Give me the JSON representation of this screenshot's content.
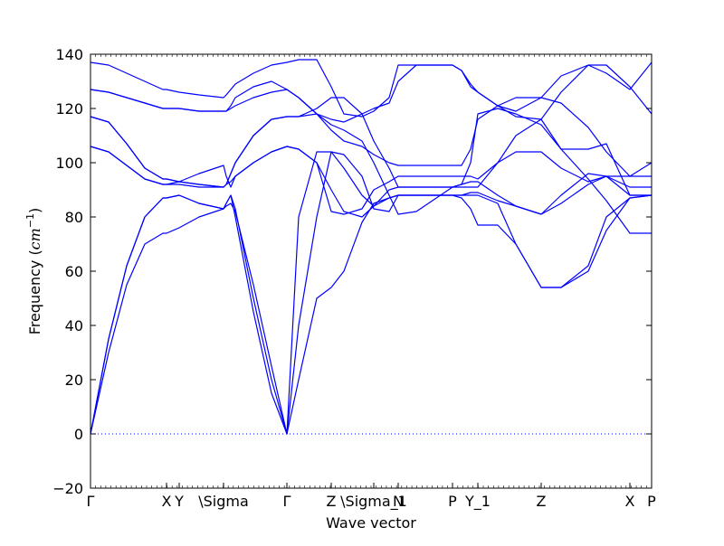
{
  "chart_data": {
    "type": "line",
    "xlabel": "Wave vector",
    "ylabel": "Frequency ($cm^{-1}$)",
    "ylabel_text": "Frequency (",
    "ylabel_unit": "cm",
    "ylabel_exp": "−1",
    "ylabel_close": ")",
    "ylim": [
      -20,
      140
    ],
    "yticks": [
      -20,
      0,
      20,
      40,
      60,
      80,
      100,
      120,
      140
    ],
    "xlim": [
      0,
      6.2
    ],
    "zero_line": true,
    "line_color": "#0000ff",
    "qpoints": [
      {
        "label": "Γ",
        "x": 0.0
      },
      {
        "label": "X",
        "x": 0.84
      },
      {
        "label": "Y",
        "x": 0.98
      },
      {
        "label": "\\Sigma",
        "x": 1.47
      },
      {
        "label": "Γ",
        "x": 2.17
      },
      {
        "label": "Z",
        "x": 2.66
      },
      {
        "label": "\\Sigma_1",
        "x": 3.13
      },
      {
        "label": "N",
        "x": 3.4
      },
      {
        "label": "P",
        "x": 4.0
      },
      {
        "label": "Y_1",
        "x": 4.28
      },
      {
        "label": "Z",
        "x": 4.98
      },
      {
        "label": "X",
        "x": 5.96
      },
      {
        "label": "P",
        "x": 6.2
      }
    ],
    "series": [
      {
        "x": [
          0,
          0.2,
          0.4,
          0.6,
          0.8,
          0.84,
          0.98,
          1.2,
          1.47,
          1.5,
          1.55,
          1.6,
          1.8,
          2.0,
          2.17,
          2.3,
          2.5,
          2.66,
          2.8,
          3.0,
          3.13,
          3.3,
          3.4,
          3.6,
          4.0,
          4.1,
          4.2,
          4.28,
          4.5,
          4.7,
          4.98,
          5.2,
          5.5,
          5.7,
          5.96,
          6.2
        ],
        "values": [
          0,
          35,
          62,
          80,
          87,
          87,
          88,
          85,
          83,
          85,
          88,
          83,
          50,
          20,
          0,
          20,
          50,
          54,
          60,
          78,
          85,
          87,
          88,
          88,
          88,
          87,
          83,
          77,
          77,
          70,
          54,
          54,
          60,
          75,
          87,
          88
        ]
      },
      {
        "x": [
          0,
          0.2,
          0.4,
          0.6,
          0.8,
          0.84,
          0.98,
          1.2,
          1.47,
          1.5,
          1.55,
          1.6,
          1.8,
          2.0,
          2.17,
          2.3,
          2.5,
          2.66,
          2.8,
          3.0,
          3.13,
          3.3,
          3.4,
          3.6,
          4.0,
          4.1,
          4.2,
          4.28,
          4.5,
          4.7,
          4.98,
          5.2,
          5.5,
          5.7,
          5.96,
          6.2
        ],
        "values": [
          0,
          30,
          55,
          70,
          74,
          74,
          76,
          80,
          83,
          85,
          88,
          80,
          45,
          15,
          0,
          40,
          80,
          104,
          103,
          95,
          83,
          82,
          88,
          88,
          88,
          88,
          88,
          88,
          85,
          70,
          54,
          54,
          62,
          80,
          87,
          88
        ]
      },
      {
        "x": [
          0,
          0.2,
          0.4,
          0.6,
          0.8,
          0.84,
          0.98,
          1.2,
          1.47,
          1.5,
          1.55,
          1.6,
          1.8,
          2.0,
          2.17,
          2.3,
          2.5,
          2.66,
          2.8,
          3.0,
          3.13,
          3.3,
          3.4,
          3.6,
          4.0,
          4.1,
          4.2,
          4.28,
          4.5,
          4.7,
          4.98,
          5.2,
          5.5,
          5.7,
          5.96,
          6.2
        ],
        "values": [
          0,
          35,
          62,
          80,
          87,
          87,
          88,
          85,
          83,
          84,
          85,
          82,
          55,
          25,
          0,
          80,
          104,
          104,
          98,
          88,
          84,
          87,
          88,
          88,
          88,
          88,
          89,
          89,
          86,
          84,
          81,
          85,
          92,
          95,
          91,
          91
        ]
      },
      {
        "x": [
          0,
          0.2,
          0.4,
          0.6,
          0.8,
          0.84,
          0.98,
          1.2,
          1.47,
          1.5,
          1.55,
          1.6,
          1.8,
          2.0,
          2.17,
          2.3,
          2.5,
          2.66,
          2.8,
          3.0,
          3.13,
          3.3,
          3.4,
          3.6,
          4.0,
          4.1,
          4.2,
          4.28,
          4.5,
          4.7,
          4.98,
          5.2,
          5.5,
          5.7,
          5.96,
          6.2
        ],
        "values": [
          106,
          104,
          99,
          94,
          92,
          92,
          92,
          91,
          91,
          92,
          93,
          95,
          100,
          104,
          106,
          105,
          100,
          90,
          82,
          80,
          84,
          90,
          91,
          91,
          91,
          92,
          93,
          93,
          88,
          84,
          81,
          88,
          96,
          95,
          88,
          88
        ]
      },
      {
        "x": [
          0,
          0.2,
          0.4,
          0.6,
          0.8,
          0.84,
          0.98,
          1.2,
          1.47,
          1.5,
          1.55,
          1.6,
          1.8,
          2.0,
          2.17,
          2.3,
          2.5,
          2.66,
          2.8,
          3.0,
          3.13,
          3.3,
          3.4,
          3.6,
          4.0,
          4.1,
          4.2,
          4.28,
          4.5,
          4.7,
          4.98,
          5.2,
          5.5,
          5.7,
          5.96,
          6.2
        ],
        "values": [
          106,
          104,
          99,
          94,
          92,
          92,
          93,
          96,
          99,
          95,
          91,
          95,
          100,
          104,
          106,
          105,
          100,
          82,
          81,
          83,
          90,
          93,
          95,
          95,
          95,
          95,
          95,
          94,
          100,
          104,
          104,
          98,
          93,
          95,
          95,
          95
        ]
      },
      {
        "x": [
          0,
          0.2,
          0.4,
          0.6,
          0.8,
          0.84,
          0.98,
          1.2,
          1.47,
          1.5,
          1.55,
          1.6,
          1.8,
          2.0,
          2.17,
          2.3,
          2.5,
          2.66,
          2.8,
          3.0,
          3.13,
          3.3,
          3.4,
          3.6,
          4.0,
          4.1,
          4.2,
          4.28,
          4.5,
          4.7,
          4.98,
          5.2,
          5.5,
          5.7,
          5.96,
          6.2
        ],
        "values": [
          117,
          115,
          107,
          98,
          94,
          94,
          93,
          92,
          91,
          92,
          96,
          100,
          110,
          116,
          117,
          117,
          120,
          124,
          124,
          118,
          108,
          98,
          91,
          91,
          91,
          91,
          91,
          91,
          100,
          110,
          116,
          105,
          105,
          107,
          88,
          88
        ]
      },
      {
        "x": [
          0,
          0.2,
          0.4,
          0.6,
          0.8,
          0.84,
          0.98,
          1.2,
          1.47,
          1.5,
          1.55,
          1.6,
          1.8,
          2.0,
          2.17,
          2.3,
          2.5,
          2.66,
          2.8,
          3.0,
          3.13,
          3.3,
          3.4,
          3.6,
          4.0,
          4.1,
          4.2,
          4.28,
          4.5,
          4.7,
          4.98,
          5.2,
          5.5,
          5.7,
          5.96,
          6.2
        ],
        "values": [
          117,
          115,
          107,
          98,
          94,
          94,
          93,
          92,
          91,
          92,
          96,
          100,
          110,
          116,
          117,
          117,
          118,
          114,
          112,
          108,
          100,
          88,
          81,
          82,
          91,
          92,
          100,
          118,
          120,
          118,
          114,
          105,
          94,
          86,
          74,
          74
        ]
      },
      {
        "x": [
          0,
          0.2,
          0.4,
          0.6,
          0.8,
          0.84,
          0.98,
          1.2,
          1.47,
          1.5,
          1.55,
          1.6,
          1.8,
          2.0,
          2.17,
          2.3,
          2.5,
          2.66,
          2.8,
          3.0,
          3.13,
          3.3,
          3.4,
          3.6,
          4.0,
          4.1,
          4.2,
          4.28,
          4.5,
          4.7,
          4.98,
          5.2,
          5.5,
          5.7,
          5.96,
          6.2
        ],
        "values": [
          127,
          126,
          124,
          122,
          120,
          120,
          120,
          119,
          119,
          119,
          120,
          121,
          124,
          126,
          127,
          124,
          118,
          116,
          115,
          118,
          120,
          122,
          130,
          136,
          136,
          134,
          128,
          126,
          121,
          117,
          116,
          126,
          136,
          136,
          128,
          118
        ]
      },
      {
        "x": [
          0,
          0.2,
          0.4,
          0.6,
          0.8,
          0.84,
          0.98,
          1.2,
          1.47,
          1.5,
          1.55,
          1.6,
          1.8,
          2.0,
          2.17,
          2.3,
          2.5,
          2.66,
          2.8,
          3.0,
          3.13,
          3.3,
          3.4,
          3.6,
          4.0,
          4.1,
          4.2,
          4.28,
          4.5,
          4.7,
          4.98,
          5.2,
          5.5,
          5.7,
          5.96,
          6.2
        ],
        "values": [
          127,
          126,
          124,
          122,
          120,
          120,
          120,
          119,
          119,
          119,
          121,
          124,
          128,
          130,
          127,
          124,
          118,
          112,
          108,
          106,
          103,
          100,
          99,
          99,
          99,
          99,
          105,
          116,
          121,
          124,
          124,
          122,
          113,
          104,
          95,
          100
        ]
      },
      {
        "x": [
          0,
          0.2,
          0.4,
          0.6,
          0.8,
          0.84,
          0.98,
          1.2,
          1.47,
          1.5,
          1.55,
          1.6,
          1.8,
          2.0,
          2.17,
          2.3,
          2.5,
          2.66,
          2.8,
          3.0,
          3.13,
          3.3,
          3.4,
          3.6,
          4.0,
          4.1,
          4.2,
          4.28,
          4.5,
          4.7,
          4.98,
          5.2,
          5.5,
          5.7,
          5.96,
          6.2
        ],
        "values": [
          137,
          136,
          133,
          130,
          127,
          127,
          126,
          125,
          124,
          125,
          127,
          129,
          133,
          136,
          137,
          138,
          138,
          128,
          118,
          117,
          119,
          124,
          136,
          136,
          136,
          134,
          129,
          126,
          121,
          119,
          124,
          132,
          136,
          133,
          127,
          137
        ]
      }
    ]
  }
}
